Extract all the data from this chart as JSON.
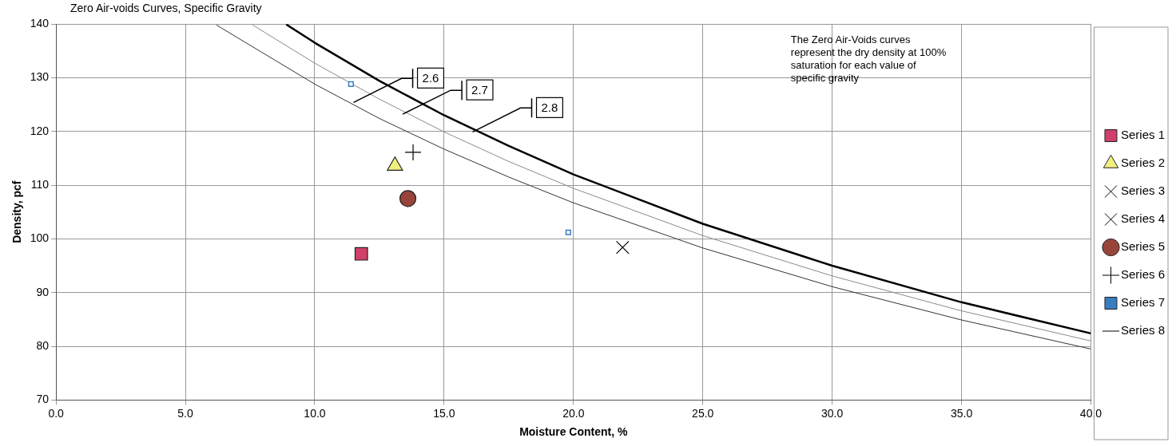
{
  "chart_data": {
    "type": "scatter",
    "title": "Zero Air-voids Curves, Specific Gravity",
    "xlabel": "Moisture Content, %",
    "ylabel": "Density, pcf",
    "xlim": [
      0,
      40
    ],
    "ylim": [
      70,
      140
    ],
    "xticks": [
      {
        "value": 0,
        "label": "0.0"
      },
      {
        "value": 5,
        "label": "5.0"
      },
      {
        "value": 10,
        "label": "10.0"
      },
      {
        "value": 15,
        "label": "15.0"
      },
      {
        "value": 20,
        "label": "20.0"
      },
      {
        "value": 25,
        "label": "25.0"
      },
      {
        "value": 30,
        "label": "30.0"
      },
      {
        "value": 35,
        "label": "35.0"
      },
      {
        "value": 40,
        "label": "40.0"
      }
    ],
    "yticks": [
      70,
      80,
      90,
      100,
      110,
      120,
      130,
      140
    ],
    "grid": true,
    "legend": "right",
    "series": [
      {
        "name": "Series 1",
        "color": "#d0406a",
        "marker": "square",
        "x": [
          11.8
        ],
        "values": [
          97.2
        ]
      },
      {
        "name": "Series 2",
        "color": "#f0f080",
        "marker": "triangle",
        "x": [
          13.1
        ],
        "values": [
          113.6
        ]
      },
      {
        "name": "Series 3",
        "color": "#000000",
        "marker": "cross"
      },
      {
        "name": "Series 4",
        "color": "#000000",
        "marker": "cross",
        "x": [
          21.9
        ],
        "values": [
          98.4
        ]
      },
      {
        "name": "Series 5",
        "color": "#98443a",
        "marker": "circle",
        "x": [
          13.6
        ],
        "values": [
          107.5
        ]
      },
      {
        "name": "Series 6",
        "color": "#000000",
        "marker": "plus",
        "x": [
          13.8
        ],
        "values": [
          116.1
        ]
      },
      {
        "name": "Series 7",
        "color": "#3a7cc0",
        "marker": "square",
        "x": [
          11.4,
          19.8
        ],
        "values": [
          128.8,
          101.2
        ]
      },
      {
        "name": "Series 8",
        "type": "line",
        "color": "#000000",
        "marker": "none",
        "x": [
          8.9,
          10,
          12.5,
          15,
          17.5,
          20,
          25,
          30,
          35,
          40
        ],
        "values": [
          139.9,
          136.5,
          129.4,
          123.0,
          117.3,
          112.0,
          102.8,
          95.0,
          88.2,
          82.4
        ]
      },
      {
        "type": "line",
        "color": "#8a8a8a",
        "marker": "none",
        "x": [
          7.6,
          10,
          12.5,
          15,
          17.5,
          20,
          25,
          30,
          35,
          40
        ],
        "values": [
          139.8,
          132.7,
          126.0,
          119.9,
          114.4,
          109.4,
          100.6,
          93.1,
          86.6,
          81.0
        ]
      },
      {
        "type": "line",
        "color": "#333333",
        "marker": "none",
        "x": [
          6.2,
          10,
          12.5,
          15,
          17.5,
          20,
          25,
          30,
          35,
          40
        ],
        "values": [
          139.8,
          128.8,
          122.4,
          116.7,
          111.5,
          106.7,
          98.3,
          91.1,
          84.9,
          79.5
        ]
      }
    ],
    "annotations": [
      {
        "text": "2.6",
        "x": 11.5,
        "y": 125.4
      },
      {
        "text": "2.7",
        "x": 13.4,
        "y": 123.2
      },
      {
        "text": "2.8",
        "x": 16.1,
        "y": 119.9
      },
      "The Zero Air-Voids curves represent the dry density at 100% saturation for each value of specific gravity"
    ]
  }
}
